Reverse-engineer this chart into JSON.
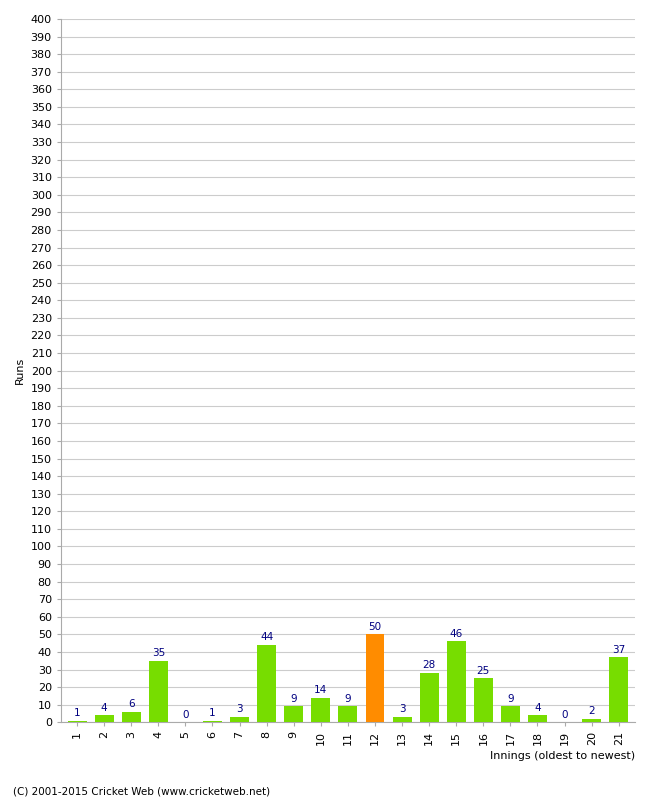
{
  "xlabel": "Innings (oldest to newest)",
  "ylabel": "Runs",
  "categories": [
    1,
    2,
    3,
    4,
    5,
    6,
    7,
    8,
    9,
    10,
    11,
    12,
    13,
    14,
    15,
    16,
    17,
    18,
    19,
    20,
    21
  ],
  "values": [
    1,
    4,
    6,
    35,
    0,
    1,
    3,
    44,
    9,
    14,
    9,
    50,
    3,
    28,
    46,
    25,
    9,
    4,
    0,
    2,
    37
  ],
  "bar_colors": [
    "#77dd00",
    "#77dd00",
    "#77dd00",
    "#77dd00",
    "#77dd00",
    "#77dd00",
    "#77dd00",
    "#77dd00",
    "#77dd00",
    "#77dd00",
    "#77dd00",
    "#ff8c00",
    "#77dd00",
    "#77dd00",
    "#77dd00",
    "#77dd00",
    "#77dd00",
    "#77dd00",
    "#77dd00",
    "#77dd00",
    "#77dd00"
  ],
  "ylim": [
    0,
    400
  ],
  "yticks": [
    0,
    10,
    20,
    30,
    40,
    50,
    60,
    70,
    80,
    90,
    100,
    110,
    120,
    130,
    140,
    150,
    160,
    170,
    180,
    190,
    200,
    210,
    220,
    230,
    240,
    250,
    260,
    270,
    280,
    290,
    300,
    310,
    320,
    330,
    340,
    350,
    360,
    370,
    380,
    390,
    400
  ],
  "annotation_color": "#000080",
  "annotation_fontsize": 7.5,
  "grid_color": "#cccccc",
  "background_color": "#ffffff",
  "footer": "(C) 2001-2015 Cricket Web (www.cricketweb.net)",
  "xlabel_fontsize": 8,
  "ylabel_fontsize": 8,
  "tick_fontsize": 8
}
